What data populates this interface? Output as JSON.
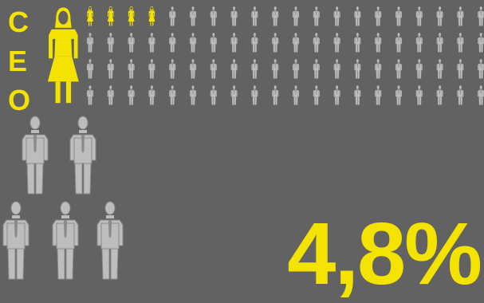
{
  "ceo_label": [
    "C",
    "E",
    "O"
  ],
  "headline_value": "4,8%",
  "colors": {
    "background": "#626262",
    "highlight": "#f4e300",
    "figure": "#bdbdbd",
    "figure_line": "#8a8a8a"
  },
  "chart_data": {
    "type": "pictogram",
    "title": "",
    "unit_grid": {
      "rows": 4,
      "columns": 20
    },
    "categories": [
      "women",
      "men"
    ],
    "values": [
      4,
      76
    ],
    "share_women_percent": 4.8,
    "icons": {
      "highlighted": "woman-icon",
      "default": "man-icon"
    }
  }
}
